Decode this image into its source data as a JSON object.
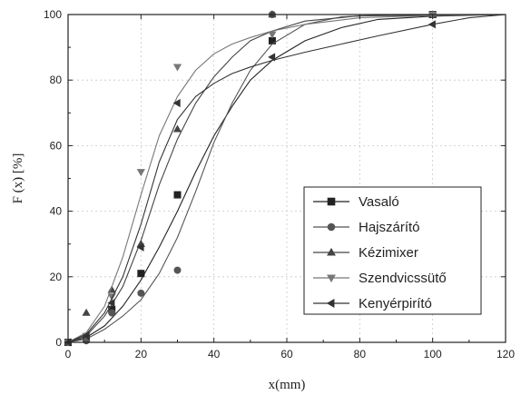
{
  "chart_data": {
    "type": "line",
    "xlabel": "x(mm)",
    "ylabel": "F (x) [%]",
    "xlim": [
      0,
      120
    ],
    "ylim": [
      0,
      100
    ],
    "xticks": [
      0,
      20,
      40,
      60,
      80,
      100,
      120
    ],
    "yticks": [
      0,
      20,
      40,
      60,
      80,
      100
    ],
    "grid": true,
    "legend_position": "lower-right",
    "series": [
      {
        "name": "Vasaló",
        "marker": "square",
        "color": "#222222",
        "points": [
          [
            0,
            0
          ],
          [
            5,
            1
          ],
          [
            12,
            10
          ],
          [
            20,
            21
          ],
          [
            30,
            45
          ],
          [
            56,
            92
          ],
          [
            100,
            100
          ]
        ],
        "curve": [
          [
            0,
            0
          ],
          [
            5,
            1.5
          ],
          [
            10,
            5
          ],
          [
            15,
            11
          ],
          [
            20,
            19
          ],
          [
            25,
            29
          ],
          [
            30,
            40
          ],
          [
            35,
            52
          ],
          [
            40,
            63
          ],
          [
            45,
            72
          ],
          [
            50,
            80
          ],
          [
            56,
            86
          ],
          [
            65,
            92
          ],
          [
            75,
            96
          ],
          [
            85,
            98.5
          ],
          [
            100,
            99.5
          ],
          [
            120,
            100
          ]
        ]
      },
      {
        "name": "Hajszárító",
        "marker": "circle",
        "color": "#555555",
        "points": [
          [
            0,
            0
          ],
          [
            5,
            0.5
          ],
          [
            12,
            9
          ],
          [
            20,
            15
          ],
          [
            30,
            22
          ],
          [
            56,
            100
          ],
          [
            100,
            100
          ]
        ],
        "curve": [
          [
            0,
            0
          ],
          [
            5,
            1
          ],
          [
            10,
            4
          ],
          [
            15,
            8
          ],
          [
            20,
            13
          ],
          [
            25,
            21
          ],
          [
            30,
            32
          ],
          [
            35,
            46
          ],
          [
            40,
            61
          ],
          [
            45,
            73
          ],
          [
            50,
            83
          ],
          [
            56,
            91
          ],
          [
            65,
            97
          ],
          [
            75,
            99.3
          ],
          [
            90,
            100
          ],
          [
            120,
            100
          ]
        ]
      },
      {
        "name": "Kézimixer",
        "marker": "triangle-up",
        "color": "#444444",
        "points": [
          [
            0,
            0
          ],
          [
            5,
            9
          ],
          [
            12,
            16
          ],
          [
            20,
            30
          ],
          [
            30,
            65
          ],
          [
            56,
            100
          ],
          [
            100,
            100
          ]
        ],
        "curve": [
          [
            0,
            0
          ],
          [
            5,
            2
          ],
          [
            10,
            8
          ],
          [
            15,
            17
          ],
          [
            20,
            31
          ],
          [
            25,
            48
          ],
          [
            30,
            62
          ],
          [
            35,
            73
          ],
          [
            40,
            81
          ],
          [
            45,
            87
          ],
          [
            50,
            92
          ],
          [
            56,
            95
          ],
          [
            65,
            98
          ],
          [
            80,
            99.6
          ],
          [
            120,
            100
          ]
        ]
      },
      {
        "name": "Szendvicssütő",
        "marker": "triangle-down",
        "color": "#777777",
        "points": [
          [
            0,
            0
          ],
          [
            5,
            2
          ],
          [
            12,
            14
          ],
          [
            20,
            52
          ],
          [
            30,
            84
          ],
          [
            56,
            94
          ],
          [
            100,
            100
          ]
        ],
        "curve": [
          [
            0,
            0
          ],
          [
            5,
            3
          ],
          [
            10,
            11
          ],
          [
            15,
            26
          ],
          [
            20,
            45
          ],
          [
            25,
            63
          ],
          [
            30,
            75
          ],
          [
            35,
            83
          ],
          [
            40,
            88
          ],
          [
            45,
            91
          ],
          [
            50,
            93
          ],
          [
            56,
            95
          ],
          [
            65,
            97
          ],
          [
            80,
            99
          ],
          [
            100,
            99.7
          ],
          [
            120,
            100
          ]
        ]
      },
      {
        "name": "Kenyérpirító",
        "marker": "triangle-left",
        "color": "#333333",
        "points": [
          [
            0,
            0
          ],
          [
            5,
            2
          ],
          [
            12,
            12
          ],
          [
            20,
            29
          ],
          [
            30,
            73
          ],
          [
            56,
            87
          ],
          [
            100,
            97
          ]
        ],
        "curve": [
          [
            0,
            0
          ],
          [
            5,
            2.5
          ],
          [
            10,
            9
          ],
          [
            15,
            20
          ],
          [
            20,
            36
          ],
          [
            25,
            55
          ],
          [
            30,
            68
          ],
          [
            35,
            75
          ],
          [
            40,
            79
          ],
          [
            45,
            82
          ],
          [
            50,
            84
          ],
          [
            56,
            86
          ],
          [
            65,
            88.5
          ],
          [
            75,
            91
          ],
          [
            85,
            93.5
          ],
          [
            100,
            97
          ],
          [
            110,
            99
          ],
          [
            120,
            100
          ]
        ]
      }
    ]
  }
}
